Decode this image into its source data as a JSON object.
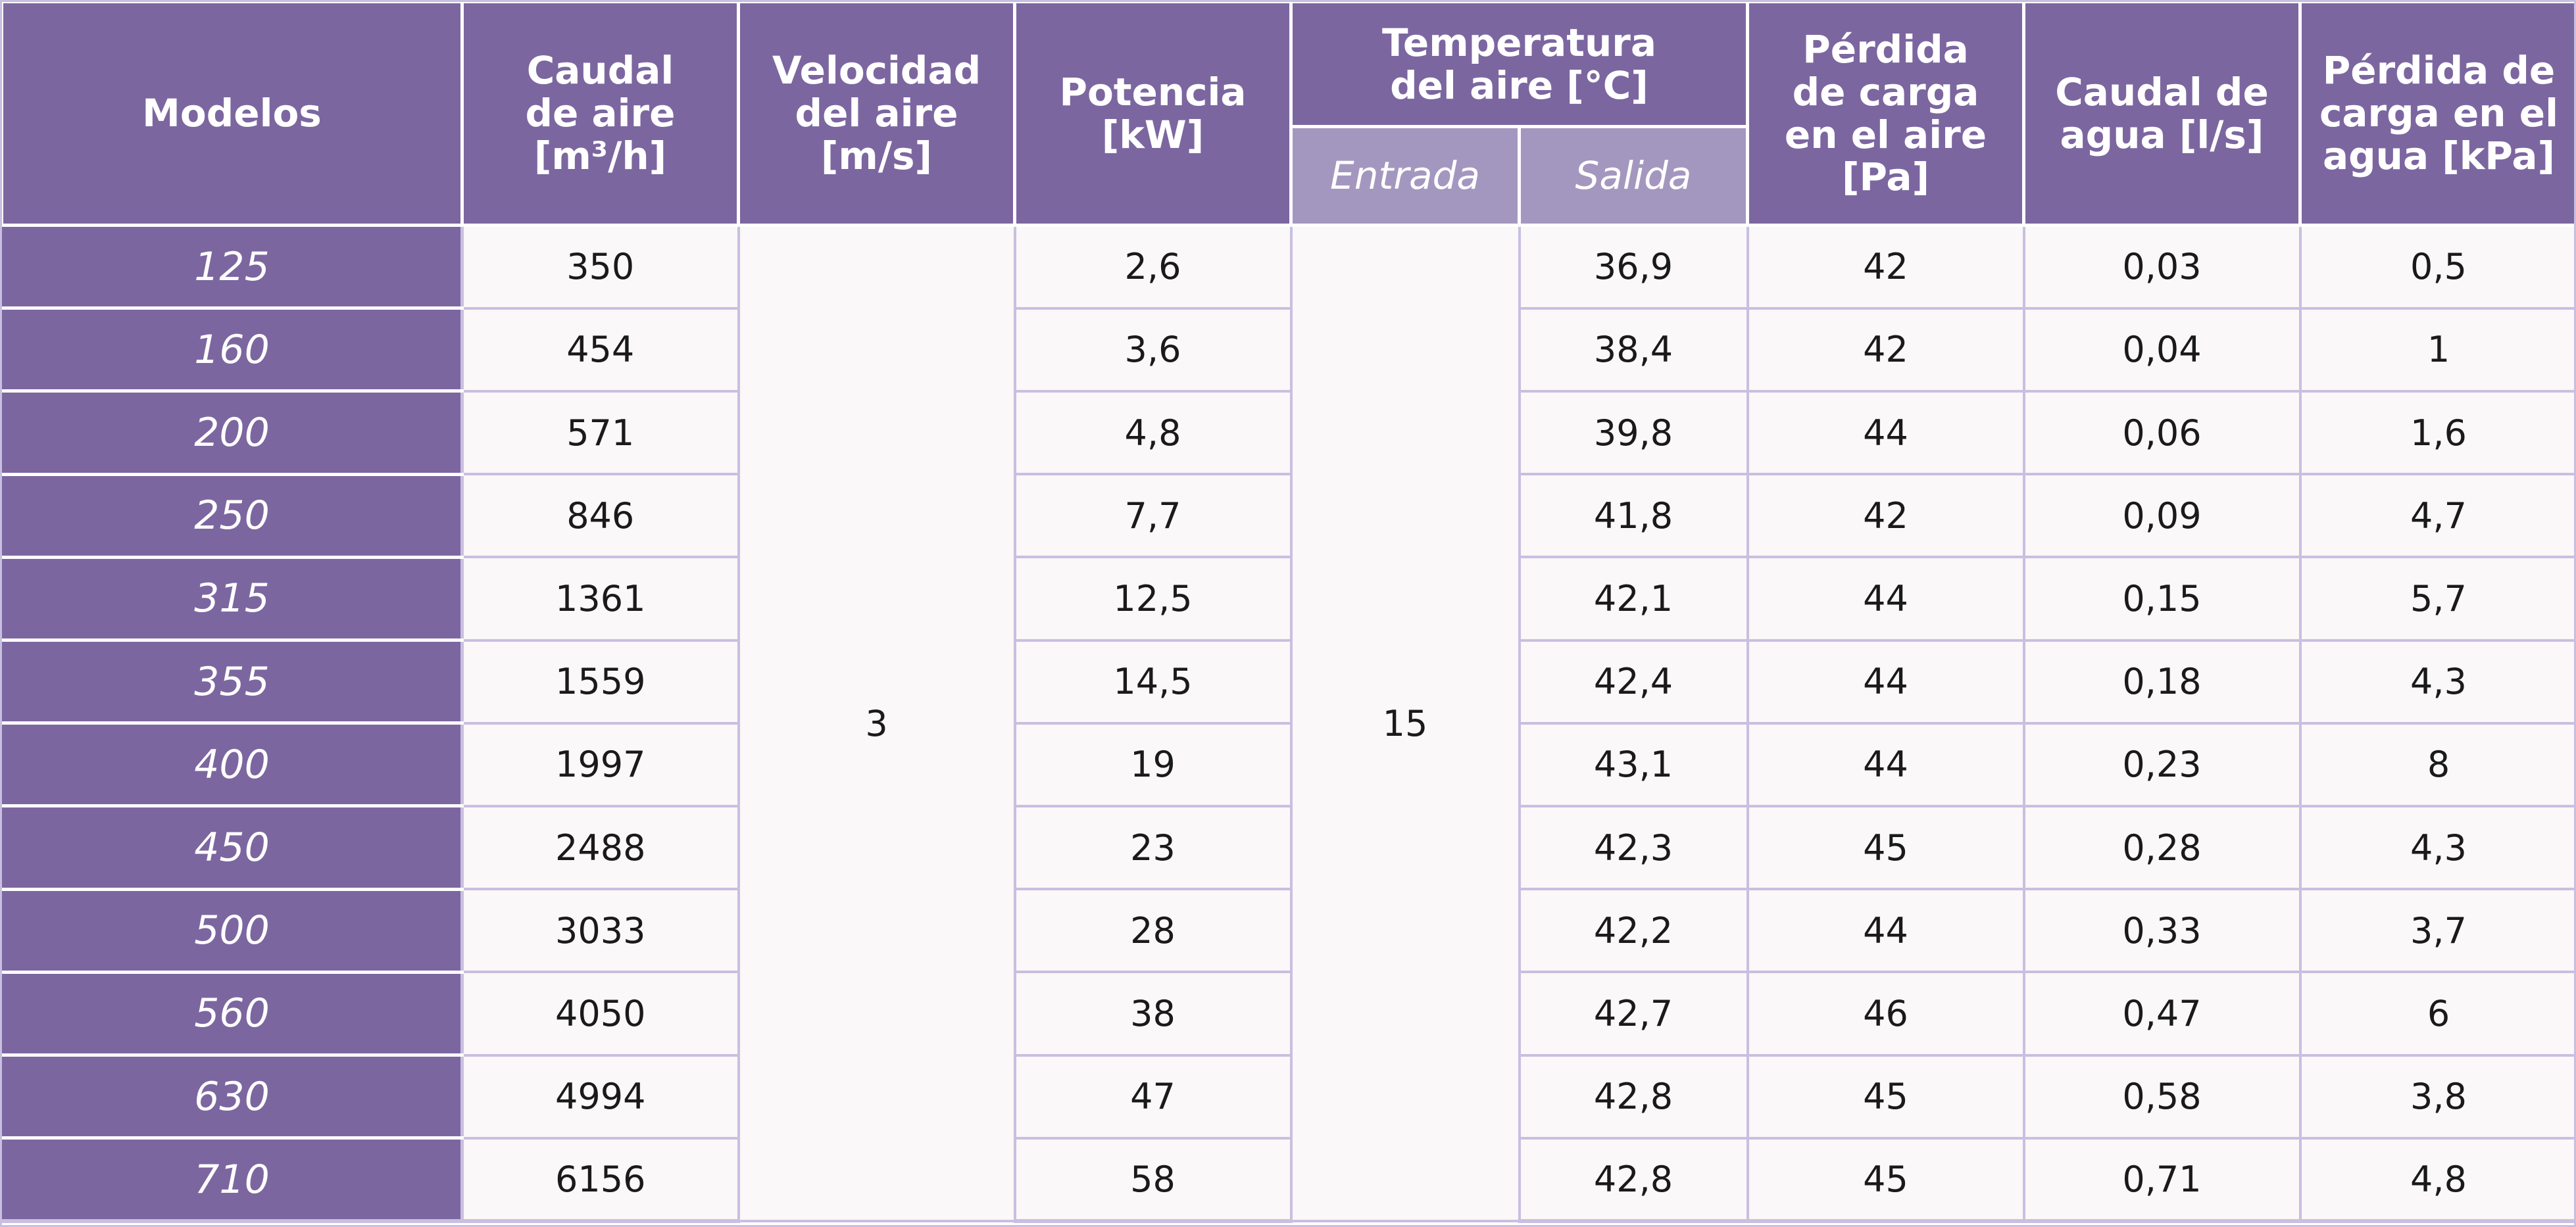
{
  "header": {
    "modelos": "Modelos",
    "caudal_aire": [
      "Caudal",
      "de aire",
      "[m³/h]"
    ],
    "velocidad_aire": [
      "Velocidad",
      "del aire",
      "[m/s]"
    ],
    "potencia": [
      "Potencia",
      "[kW]"
    ],
    "temperatura": [
      "Temperatura",
      "del aire [°C]"
    ],
    "entrada": "Entrada",
    "salida": "Salida",
    "perdida_aire": [
      "Pérdida",
      "de carga",
      "en el aire",
      "[Pa]"
    ],
    "caudal_agua": [
      "Caudal de",
      "agua [l/s]"
    ],
    "perdida_agua": [
      "Pérdida de",
      "carga en el",
      "agua [kPa]"
    ]
  },
  "velocidad_valor": "3",
  "entrada_valor": "15",
  "rows": [
    {
      "modelo": "125",
      "caudal": "350",
      "potencia": "2,6",
      "salida": "36,9",
      "perdida_aire": "42",
      "caudal_agua": "0,03",
      "perdida_agua": "0,5"
    },
    {
      "modelo": "160",
      "caudal": "454",
      "potencia": "3,6",
      "salida": "38,4",
      "perdida_aire": "42",
      "caudal_agua": "0,04",
      "perdida_agua": "1"
    },
    {
      "modelo": "200",
      "caudal": "571",
      "potencia": "4,8",
      "salida": "39,8",
      "perdida_aire": "44",
      "caudal_agua": "0,06",
      "perdida_agua": "1,6"
    },
    {
      "modelo": "250",
      "caudal": "846",
      "potencia": "7,7",
      "salida": "41,8",
      "perdida_aire": "42",
      "caudal_agua": "0,09",
      "perdida_agua": "4,7"
    },
    {
      "modelo": "315",
      "caudal": "1361",
      "potencia": "12,5",
      "salida": "42,1",
      "perdida_aire": "44",
      "caudal_agua": "0,15",
      "perdida_agua": "5,7"
    },
    {
      "modelo": "355",
      "caudal": "1559",
      "potencia": "14,5",
      "salida": "42,4",
      "perdida_aire": "44",
      "caudal_agua": "0,18",
      "perdida_agua": "4,3"
    },
    {
      "modelo": "400",
      "caudal": "1997",
      "potencia": "19",
      "salida": "43,1",
      "perdida_aire": "44",
      "caudal_agua": "0,23",
      "perdida_agua": "8"
    },
    {
      "modelo": "450",
      "caudal": "2488",
      "potencia": "23",
      "salida": "42,3",
      "perdida_aire": "45",
      "caudal_agua": "0,28",
      "perdida_agua": "4,3"
    },
    {
      "modelo": "500",
      "caudal": "3033",
      "potencia": "28",
      "salida": "42,2",
      "perdida_aire": "44",
      "caudal_agua": "0,33",
      "perdida_agua": "3,7"
    },
    {
      "modelo": "560",
      "caudal": "4050",
      "potencia": "38",
      "salida": "42,7",
      "perdida_aire": "46",
      "caudal_agua": "0,47",
      "perdida_agua": "6"
    },
    {
      "modelo": "630",
      "caudal": "4994",
      "potencia": "47",
      "salida": "42,8",
      "perdida_aire": "45",
      "caudal_agua": "0,58",
      "perdida_agua": "3,8"
    },
    {
      "modelo": "710",
      "caudal": "6156",
      "potencia": "58",
      "salida": "42,8",
      "perdida_aire": "45",
      "caudal_agua": "0,71",
      "perdida_agua": "4,8"
    }
  ]
}
